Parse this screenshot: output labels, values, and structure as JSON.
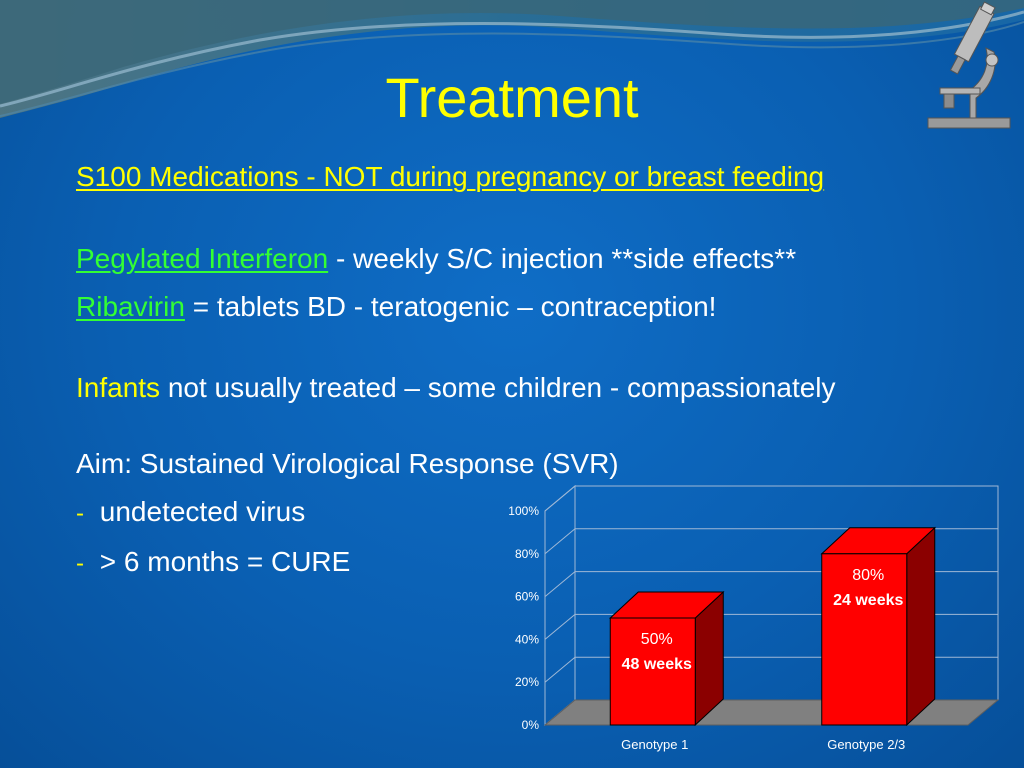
{
  "slide": {
    "title": "Treatment",
    "subtitle": "S100 Medications - NOT during pregnancy or breast feeding",
    "lines": [
      {
        "highlight": "Pegylated Interferon",
        "rest": " - weekly S/C injection **side effects**"
      },
      {
        "highlight": "Ribavirin",
        "rest": " = tablets BD  - teratogenic – contraception!"
      },
      {
        "highlight": "Infants",
        "rest": " not usually treated – some children - compassionately"
      }
    ],
    "aim": "Aim: Sustained Virological Response (SVR)",
    "bullets": [
      {
        "marker": "-",
        "text": "undetected virus"
      },
      {
        "marker": "-",
        "text": " > 6 months = CURE"
      }
    ]
  },
  "colors": {
    "background": "#0a63b8",
    "title": "#ffff00",
    "highlight_green": "#33ff33",
    "bar_front": "#ff0000",
    "bar_side": "#8b0000",
    "floor": "#808080"
  },
  "icons": [
    "microscope-icon"
  ],
  "chart_data": {
    "type": "bar",
    "categories": [
      "Genotype 1",
      "Genotype 2/3"
    ],
    "values": [
      50,
      80
    ],
    "data_labels": [
      [
        "50%",
        "48 weeks"
      ],
      [
        "80%",
        "24 weeks"
      ]
    ],
    "y_ticks": [
      "0%",
      "20%",
      "40%",
      "60%",
      "80%",
      "100%"
    ],
    "ylim": [
      0,
      100
    ],
    "grid": true,
    "three_d": true
  }
}
